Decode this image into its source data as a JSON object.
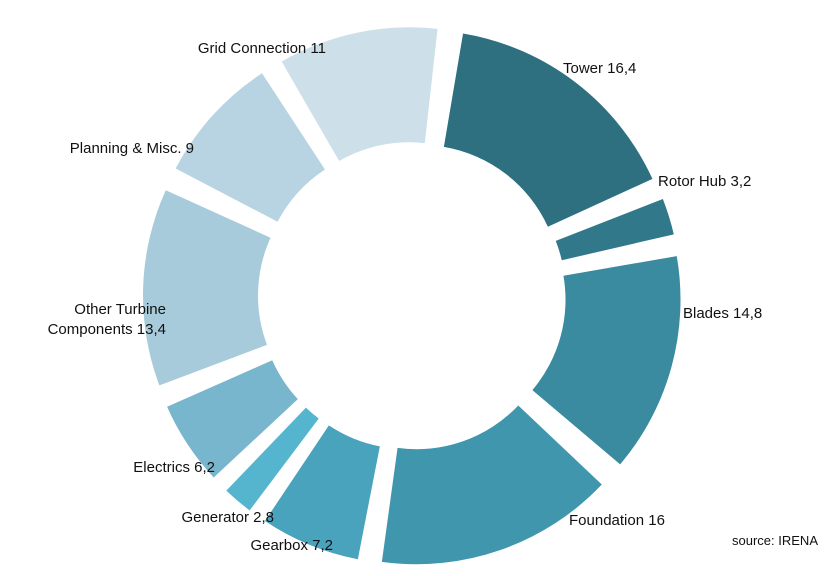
{
  "chart_data": {
    "type": "pie",
    "variant": "exploded-donut",
    "title": "",
    "categories": [
      "Tower",
      "Rotor Hub",
      "Blades",
      "Foundation",
      "Gearbox",
      "Generator",
      "Electrics",
      "Other Turbine Components",
      "Planning & Misc.",
      "Grid Connection"
    ],
    "values": [
      16.4,
      3.2,
      14.8,
      16,
      7.2,
      2.8,
      6.2,
      13.4,
      9,
      11
    ],
    "labels": [
      {
        "category": "Tower",
        "text": "Tower  16,4"
      },
      {
        "category": "Rotor Hub",
        "text": "Rotor Hub 3,2"
      },
      {
        "category": "Blades",
        "text": "Blades 14,8"
      },
      {
        "category": "Foundation",
        "text": "Foundation 16"
      },
      {
        "category": "Gearbox",
        "text": "Gearbox 7,2"
      },
      {
        "category": "Generator",
        "text": "Generator 2,8"
      },
      {
        "category": "Electrics",
        "text": "Electrics 6,2"
      },
      {
        "category": "Other Turbine Components",
        "lines": [
          "Other Turbine",
          "Components 13,4"
        ]
      },
      {
        "category": "Planning & Misc.",
        "text": "Planning & Misc. 9"
      },
      {
        "category": "Grid Connection",
        "text": "Grid Connection 11"
      }
    ],
    "colors": [
      "#2e6f80",
      "#32788b",
      "#3a8aa0",
      "#3f96ad",
      "#4aa3bd",
      "#55b5cf",
      "#78b6cd",
      "#a7cbdb",
      "#b8d4e3",
      "#cde0e9"
    ],
    "legend": "none"
  },
  "footer": {
    "source": "source: IRENA"
  }
}
